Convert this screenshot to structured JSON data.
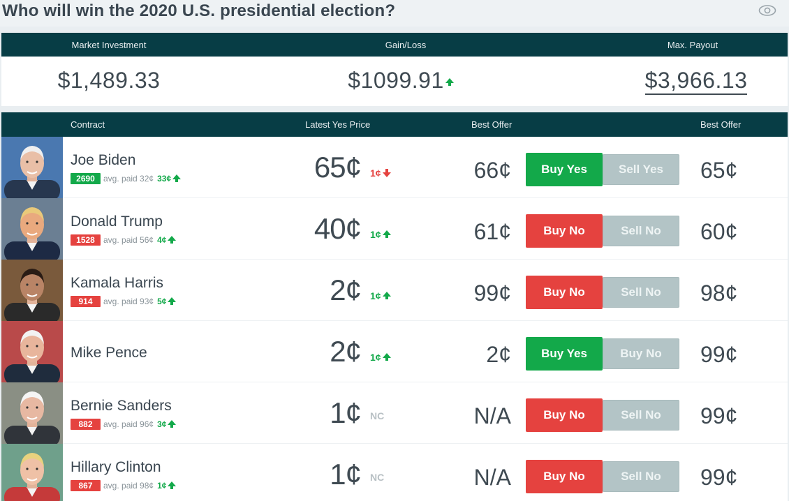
{
  "title": "Who will win the 2020 U.S. presidential election?",
  "summary": {
    "market_investment_label": "Market Investment",
    "market_investment_value": "$1,489.33",
    "gain_loss_label": "Gain/Loss",
    "gain_loss_value": "$1099.91",
    "max_payout_label": "Max. Payout",
    "max_payout_value": "$3,966.13"
  },
  "table": {
    "headers": {
      "contract": "Contract",
      "latest_yes_price": "Latest Yes Price",
      "best_offer_1": "Best Offer",
      "best_offer_2": "Best Offer"
    },
    "rows": [
      {
        "name": "Joe Biden",
        "shares": "2690",
        "shares_color": "green",
        "avg_paid": "avg. paid 32¢",
        "avg_change": "33¢",
        "price": "65¢",
        "price_change": "1¢",
        "price_dir": "down",
        "offer_left": "66¢",
        "btn_primary": "Buy Yes",
        "btn_primary_type": "buy-yes",
        "btn_secondary": "Sell Yes",
        "offer_right": "65¢"
      },
      {
        "name": "Donald Trump",
        "shares": "1528",
        "shares_color": "red",
        "avg_paid": "avg. paid 56¢",
        "avg_change": "4¢",
        "price": "40¢",
        "price_change": "1¢",
        "price_dir": "up",
        "offer_left": "61¢",
        "btn_primary": "Buy No",
        "btn_primary_type": "buy-no",
        "btn_secondary": "Sell No",
        "offer_right": "60¢"
      },
      {
        "name": "Kamala Harris",
        "shares": "914",
        "shares_color": "red",
        "avg_paid": "avg. paid 93¢",
        "avg_change": "5¢",
        "price": "2¢",
        "price_change": "1¢",
        "price_dir": "up",
        "offer_left": "99¢",
        "btn_primary": "Buy No",
        "btn_primary_type": "buy-no",
        "btn_secondary": "Sell No",
        "offer_right": "98¢"
      },
      {
        "name": "Mike Pence",
        "shares": "",
        "shares_color": "",
        "avg_paid": "",
        "avg_change": "",
        "price": "2¢",
        "price_change": "1¢",
        "price_dir": "up",
        "offer_left": "2¢",
        "btn_primary": "Buy Yes",
        "btn_primary_type": "buy-yes",
        "btn_secondary": "Buy No",
        "offer_right": "99¢"
      },
      {
        "name": "Bernie Sanders",
        "shares": "882",
        "shares_color": "red",
        "avg_paid": "avg. paid 96¢",
        "avg_change": "3¢",
        "price": "1¢",
        "price_change": "NC",
        "price_dir": "nc",
        "offer_left": "N/A",
        "btn_primary": "Buy No",
        "btn_primary_type": "buy-no",
        "btn_secondary": "Sell No",
        "offer_right": "99¢"
      },
      {
        "name": "Hillary Clinton",
        "shares": "867",
        "shares_color": "red",
        "avg_paid": "avg. paid 98¢",
        "avg_change": "1¢",
        "price": "1¢",
        "price_change": "NC",
        "price_dir": "nc",
        "offer_left": "N/A",
        "btn_primary": "Buy No",
        "btn_primary_type": "buy-no",
        "btn_secondary": "Sell No",
        "offer_right": "99¢"
      }
    ]
  }
}
